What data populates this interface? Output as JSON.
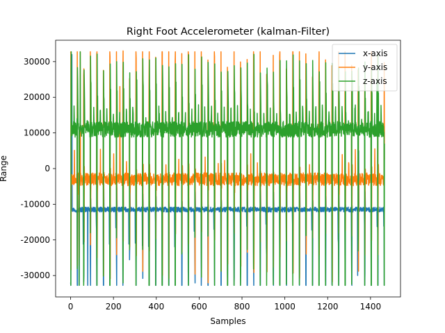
{
  "chart_data": {
    "type": "line",
    "title": "Right Foot Accelerometer (kalman-Filter)",
    "xlabel": "Samples",
    "ylabel": "Range",
    "xlim": [
      -70,
      1540
    ],
    "ylim": [
      -36000,
      36000
    ],
    "xticks": [
      0,
      200,
      400,
      600,
      800,
      1000,
      1200,
      1400
    ],
    "yticks": [
      -30000,
      -20000,
      -10000,
      0,
      10000,
      20000,
      30000
    ],
    "grid": false,
    "legend_position": "top-right",
    "n_samples": 1466,
    "step_period": 30.5,
    "series": [
      {
        "name": "x-axis",
        "color": "#1f77b4",
        "baseline": -11500,
        "noise": 700,
        "low_peak": -32768,
        "high_peak": 5000,
        "values": [
          [
            0,
            -32000
          ],
          [
            3,
            29000
          ],
          [
            6,
            32000
          ],
          [
            9,
            -11500
          ],
          [
            30,
            -11800
          ],
          [
            40,
            -32768
          ],
          [
            45,
            -11000
          ],
          [
            70,
            -11900
          ],
          [
            80,
            -32768
          ],
          [
            86,
            -11200
          ],
          [
            1340,
            -30000
          ],
          [
            1345,
            5000
          ],
          [
            1350,
            -12000
          ],
          [
            1465,
            -32768
          ]
        ]
      },
      {
        "name": "y-axis",
        "color": "#ff7f0e",
        "baseline": -3000,
        "noise": 1800,
        "low_peak": -32768,
        "high_peak": 32767,
        "values": [
          [
            0,
            32500
          ],
          [
            3,
            -3000
          ],
          [
            30,
            -4000
          ],
          [
            40,
            -25000
          ],
          [
            45,
            32767
          ],
          [
            50,
            -3500
          ],
          [
            230,
            23000
          ],
          [
            245,
            33000
          ],
          [
            260,
            -2500
          ],
          [
            1465,
            2500
          ]
        ]
      },
      {
        "name": "z-axis",
        "color": "#2ca02c",
        "baseline": 11000,
        "noise": 2200,
        "low_peak": -32768,
        "high_peak": 32767,
        "values": [
          [
            0,
            -32768
          ],
          [
            3,
            32767
          ],
          [
            8,
            11000
          ],
          [
            30,
            14000
          ],
          [
            40,
            -32768
          ],
          [
            45,
            32767
          ],
          [
            50,
            12000
          ],
          [
            1430,
            25000
          ],
          [
            1440,
            9000
          ],
          [
            1465,
            7000
          ]
        ]
      }
    ]
  }
}
